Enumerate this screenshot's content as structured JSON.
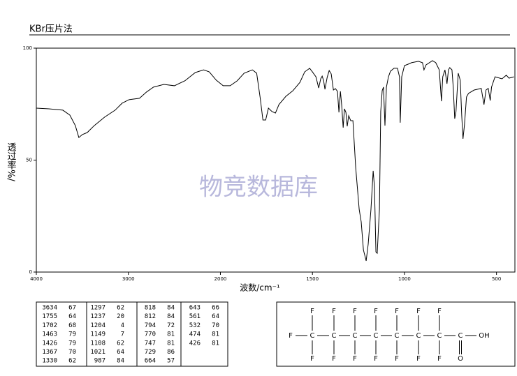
{
  "chart_data": {
    "type": "line",
    "title": "KBr压片法",
    "watermark": "物竞数据库",
    "x_label": "波数/cm⁻¹",
    "y_label": "透过率%/",
    "xlim": [
      4000,
      400
    ],
    "x_scale_break": 2000,
    "xticks": [
      4000,
      3000,
      2000,
      1500,
      1000,
      500
    ],
    "ylim": [
      0,
      100
    ],
    "yticks": [
      0,
      50,
      100
    ],
    "color": "#000000",
    "x": [
      4000,
      3864,
      3712,
      3636,
      3576,
      3538,
      3500,
      3447,
      3371,
      3258,
      3144,
      3068,
      2992,
      2879,
      2803,
      2727,
      2614,
      2500,
      2386,
      2273,
      2182,
      2121,
      2045,
      1985,
      1947,
      1909,
      1871,
      1826,
      1803,
      1784,
      1769,
      1754,
      1739,
      1720,
      1701,
      1682,
      1644,
      1606,
      1568,
      1542,
      1515,
      1500,
      1481,
      1466,
      1455,
      1447,
      1439,
      1432,
      1420,
      1409,
      1398,
      1386,
      1375,
      1364,
      1356,
      1348,
      1341,
      1333,
      1326,
      1318,
      1311,
      1303,
      1292,
      1280,
      1265,
      1246,
      1235,
      1223,
      1208,
      1197,
      1182,
      1170,
      1163,
      1155,
      1148,
      1136,
      1129,
      1121,
      1114,
      1106,
      1098,
      1087,
      1076,
      1057,
      1038,
      1027,
      1023,
      1015,
      1000,
      981,
      962,
      924,
      902,
      894,
      883,
      848,
      830,
      811,
      799,
      792,
      780,
      769,
      761,
      754,
      742,
      735,
      727,
      720,
      708,
      697,
      689,
      682,
      674,
      663,
      652,
      621,
      583,
      568,
      557,
      545,
      534,
      527,
      508,
      470,
      447,
      432,
      405
    ],
    "values": [
      73.2,
      72.9,
      72.3,
      70.1,
      65.4,
      60.1,
      61.4,
      62.3,
      65.4,
      69.2,
      72.3,
      75.4,
      77.0,
      77.6,
      80.4,
      82.6,
      83.8,
      83.2,
      85.4,
      89.1,
      90.3,
      89.4,
      85.7,
      83.2,
      83.2,
      85.4,
      88.8,
      90.3,
      88.8,
      77.9,
      67.9,
      67.9,
      73.2,
      71.7,
      71.0,
      74.8,
      78.5,
      81.0,
      84.7,
      89.4,
      91.0,
      89.4,
      87.2,
      82.2,
      86.3,
      87.5,
      85.4,
      81.6,
      86.9,
      90.0,
      88.5,
      81.3,
      81.9,
      80.7,
      71.3,
      80.7,
      74.5,
      64.5,
      72.9,
      71.3,
      65.1,
      69.8,
      67.6,
      67.6,
      46.7,
      28.0,
      22.4,
      9.9,
      5.0,
      12.5,
      28.0,
      45.2,
      38.0,
      9.0,
      8.4,
      28.0,
      71.7,
      81.0,
      82.6,
      65.4,
      82.6,
      87.2,
      89.7,
      91.0,
      91.0,
      87.2,
      66.7,
      87.2,
      92.2,
      92.8,
      93.5,
      94.1,
      93.5,
      90.3,
      92.5,
      94.4,
      93.5,
      90.3,
      76.3,
      87.2,
      90.3,
      84.1,
      90.3,
      91.3,
      90.3,
      82.6,
      68.5,
      71.7,
      88.8,
      85.7,
      70.1,
      59.5,
      65.7,
      78.2,
      79.8,
      81.3,
      82.0,
      74.8,
      81.3,
      82.0,
      76.6,
      82.6,
      87.2,
      86.3,
      87.9,
      86.6,
      87.2
    ]
  },
  "peak_table": [
    [
      3634,
      67
    ],
    [
      1755,
      64
    ],
    [
      1702,
      68
    ],
    [
      1463,
      79
    ],
    [
      1426,
      79
    ],
    [
      1367,
      70
    ],
    [
      1330,
      62
    ],
    [
      1297,
      62
    ],
    [
      1237,
      20
    ],
    [
      1204,
      4
    ],
    [
      1149,
      7
    ],
    [
      1108,
      62
    ],
    [
      1021,
      64
    ],
    [
      987,
      84
    ],
    [
      818,
      84
    ],
    [
      812,
      84
    ],
    [
      794,
      72
    ],
    [
      770,
      81
    ],
    [
      747,
      81
    ],
    [
      729,
      86
    ],
    [
      664,
      57
    ],
    [
      643,
      66
    ],
    [
      561,
      64
    ],
    [
      532,
      70
    ],
    [
      474,
      81
    ],
    [
      426,
      81
    ]
  ],
  "structure": {
    "chain": [
      "F",
      "C",
      "C",
      "C",
      "C",
      "C",
      "C",
      "C",
      "C",
      "OH"
    ],
    "above": [
      "F",
      "F",
      "F",
      "F",
      "F",
      "F",
      "F"
    ],
    "below": [
      "F",
      "F",
      "F",
      "F",
      "F",
      "F",
      "F",
      "O"
    ]
  }
}
